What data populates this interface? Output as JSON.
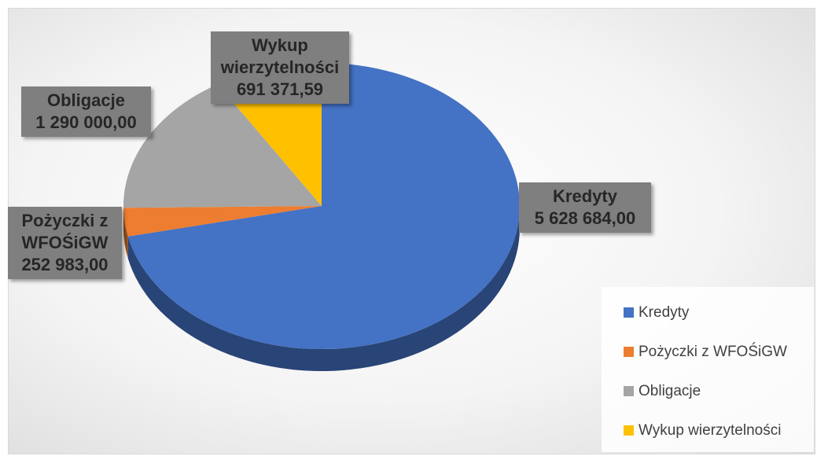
{
  "chart_data": {
    "type": "pie",
    "categories": [
      "Kredyty",
      "Pożyczki z WFOŚiGW",
      "Obligacje",
      "Wykup wierzytelności"
    ],
    "values": [
      5628684.0,
      252983.0,
      1290000.0,
      691371.59
    ],
    "value_labels": [
      "5 628 684,00",
      "252 983,00",
      "1 290 000,00",
      "691 371,59"
    ],
    "colors": [
      "#4472c4",
      "#ed7d31",
      "#a5a5a5",
      "#ffc000"
    ],
    "legend": "bottom-right"
  }
}
